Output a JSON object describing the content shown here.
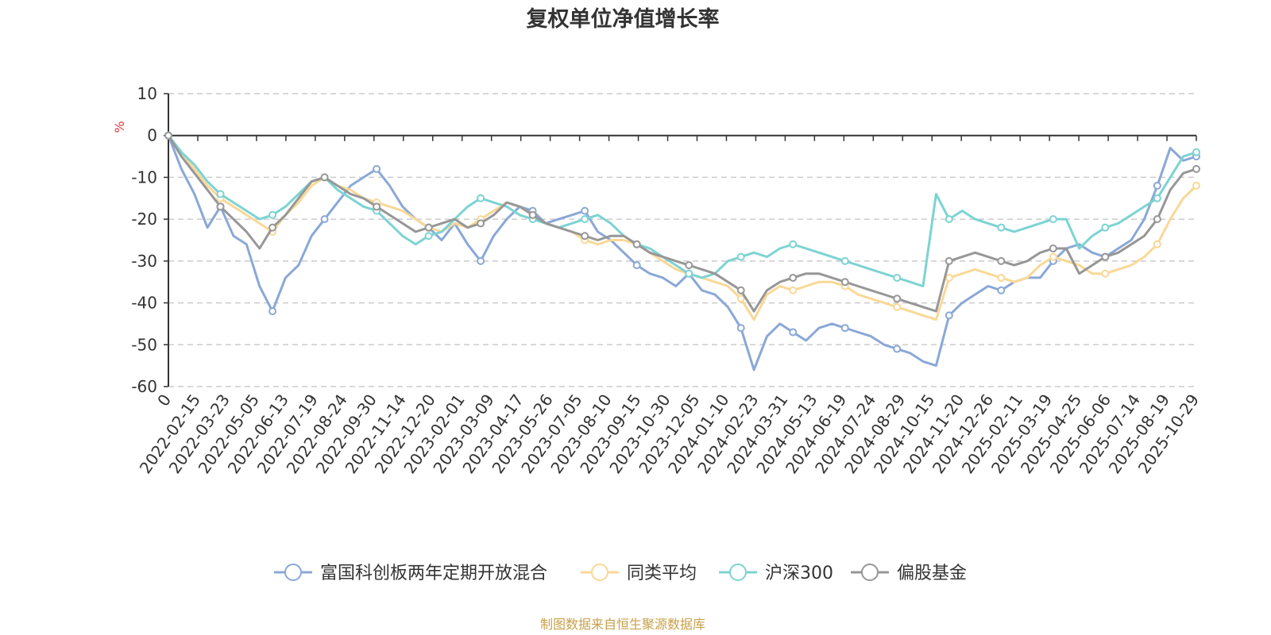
{
  "chart_data": {
    "type": "line",
    "title": "复权单位净值增长率",
    "ylabel": "%",
    "ylim": [
      -60,
      10
    ],
    "yticks": [
      "10",
      "0",
      "-10",
      "-20",
      "-30",
      "-40",
      "-50",
      "-60"
    ],
    "ytick_values": [
      10,
      0,
      -10,
      -20,
      -30,
      -40,
      -50,
      -60
    ],
    "x_labels": [
      "0",
      "2022-02-15",
      "2022-03-23",
      "2022-05-05",
      "2022-06-13",
      "2022-07-19",
      "2022-08-24",
      "2022-09-30",
      "2022-11-14",
      "2022-12-20",
      "2023-02-01",
      "2023-03-09",
      "2023-04-17",
      "2023-05-26",
      "2023-07-05",
      "2023-08-10",
      "2023-09-15",
      "2023-10-30",
      "2023-12-05",
      "2024-01-10",
      "2024-02-23",
      "2024-03-31",
      "2024-05-13",
      "2024-06-19",
      "2024-07-24",
      "2024-08-29",
      "2024-10-15",
      "2024-11-20",
      "2024-12-26",
      "2025-02-11",
      "2025-03-19",
      "2025-04-25",
      "2025-06-06",
      "2025-07-14",
      "2025-08-19",
      "2025-10-29"
    ],
    "grid": true,
    "legend_position": "bottom",
    "source_note": "制图数据来自恒生聚源数据库",
    "series": [
      {
        "name": "富国科创板两年定期开放混合",
        "color": "#8aa8d6",
        "values": [
          0,
          -8,
          -14,
          -22,
          -17,
          -24,
          -26,
          -36,
          -42,
          -34,
          -31,
          -24,
          -20,
          -16,
          -12,
          -10,
          -8,
          -12,
          -17,
          -20,
          -22,
          -25,
          -21,
          -26,
          -30,
          -24,
          -20,
          -17,
          -18,
          -21,
          -20,
          -19,
          -18,
          -23,
          -25,
          -28,
          -31,
          -33,
          -34,
          -36,
          -33,
          -37,
          -38,
          -41,
          -46,
          -56,
          -48,
          -45,
          -47,
          -49,
          -46,
          -45,
          -46,
          -47,
          -48,
          -50,
          -51,
          -52,
          -54,
          -55,
          -43,
          -40,
          -38,
          -36,
          -37,
          -35,
          -34,
          -34,
          -30,
          -27,
          -26,
          -28,
          -29,
          -27,
          -25,
          -20,
          -12,
          -3,
          -6,
          -5
        ]
      },
      {
        "name": "同类平均",
        "color": "#f9d897",
        "values": [
          0,
          -4,
          -8,
          -12,
          -15,
          -17,
          -19,
          -21,
          -23,
          -19,
          -16,
          -12,
          -10,
          -12,
          -13,
          -15,
          -16,
          -17,
          -18,
          -20,
          -22,
          -23,
          -21,
          -22,
          -20,
          -18,
          -16,
          -17,
          -19,
          -21,
          -22,
          -23,
          -25,
          -26,
          -25,
          -25,
          -26,
          -28,
          -30,
          -32,
          -33,
          -34,
          -35,
          -36,
          -39,
          -44,
          -38,
          -36,
          -37,
          -36,
          -35,
          -35,
          -36,
          -38,
          -39,
          -40,
          -41,
          -42,
          -43,
          -44,
          -34,
          -33,
          -32,
          -33,
          -34,
          -35,
          -34,
          -31,
          -29,
          -30,
          -31,
          -33,
          -33,
          -32,
          -31,
          -29,
          -26,
          -20,
          -15,
          -12
        ]
      },
      {
        "name": "沪深300",
        "color": "#7dd3d3",
        "values": [
          0,
          -4,
          -7,
          -11,
          -14,
          -16,
          -18,
          -20,
          -19,
          -17,
          -14,
          -11,
          -10,
          -13,
          -15,
          -17,
          -18,
          -21,
          -24,
          -26,
          -24,
          -23,
          -20,
          -17,
          -15,
          -16,
          -17,
          -19,
          -20,
          -21,
          -22,
          -21,
          -20,
          -19,
          -21,
          -24,
          -26,
          -27,
          -29,
          -31,
          -33,
          -34,
          -33,
          -30,
          -29,
          -28,
          -29,
          -27,
          -26,
          -27,
          -28,
          -29,
          -30,
          -31,
          -32,
          -33,
          -34,
          -35,
          -36,
          -14,
          -20,
          -18,
          -20,
          -21,
          -22,
          -23,
          -22,
          -21,
          -20,
          -20,
          -27,
          -24,
          -22,
          -21,
          -19,
          -17,
          -15,
          -10,
          -5,
          -4
        ]
      },
      {
        "name": "偏股基金",
        "color": "#979797",
        "values": [
          0,
          -5,
          -9,
          -13,
          -17,
          -20,
          -23,
          -27,
          -22,
          -19,
          -15,
          -11,
          -10,
          -12,
          -14,
          -15,
          -17,
          -19,
          -21,
          -23,
          -22,
          -21,
          -20,
          -22,
          -21,
          -19,
          -16,
          -17,
          -19,
          -21,
          -22,
          -23,
          -24,
          -25,
          -24,
          -24,
          -26,
          -28,
          -29,
          -30,
          -31,
          -32,
          -33,
          -35,
          -37,
          -42,
          -37,
          -35,
          -34,
          -33,
          -33,
          -34,
          -35,
          -36,
          -37,
          -38,
          -39,
          -40,
          -41,
          -42,
          -30,
          -29,
          -28,
          -29,
          -30,
          -31,
          -30,
          -28,
          -27,
          -27,
          -33,
          -31,
          -29,
          -28,
          -26,
          -24,
          -20,
          -13,
          -9,
          -8
        ]
      }
    ]
  }
}
